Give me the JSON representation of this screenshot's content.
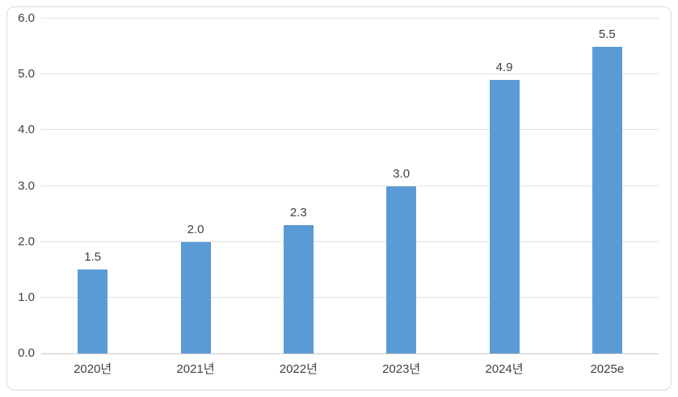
{
  "chart_data": {
    "type": "bar",
    "title": "",
    "xlabel": "",
    "ylabel": "",
    "categories": [
      "2020년",
      "2021년",
      "2022년",
      "2023년",
      "2024년",
      "2025e"
    ],
    "values": [
      1.5,
      2.0,
      2.3,
      3.0,
      4.9,
      5.5
    ],
    "data_labels": [
      "1.5",
      "2.0",
      "2.3",
      "3.0",
      "4.9",
      "5.5"
    ],
    "yticks": [
      "0.0",
      "1.0",
      "2.0",
      "3.0",
      "4.0",
      "5.0",
      "6.0"
    ],
    "ytick_values": [
      0,
      1,
      2,
      3,
      4,
      5,
      6
    ],
    "ylim": [
      0,
      6
    ],
    "grid": true,
    "legend_position": "none"
  },
  "colors": {
    "bar": "#5B9BD5",
    "gridline": "#E2E2E2",
    "axis_line": "#C9C9C9",
    "tick_text": "#404040",
    "frame_border": "#D9D9D9",
    "background": "#FFFFFF"
  }
}
